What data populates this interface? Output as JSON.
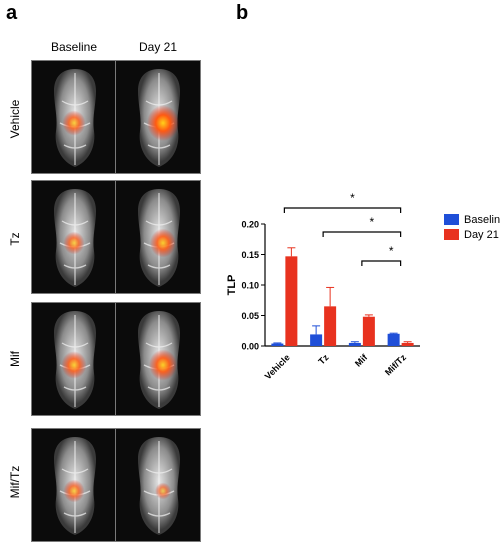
{
  "panel_a": {
    "letter": "a",
    "columns": [
      "Baseline",
      "Day 21"
    ],
    "rows": [
      "Vehicle",
      "Tz",
      "Mif",
      "Mif/Tz"
    ],
    "scans": [
      [
        {
          "signal": 0.55
        },
        {
          "signal": 1.0
        }
      ],
      [
        {
          "signal": 0.45
        },
        {
          "signal": 0.7
        }
      ],
      [
        {
          "signal": 0.65
        },
        {
          "signal": 0.8
        }
      ],
      [
        {
          "signal": 0.45
        },
        {
          "signal": 0.2
        }
      ]
    ]
  },
  "panel_b": {
    "letter": "b"
  },
  "chart_data": {
    "type": "bar",
    "categories": [
      "Vehicle",
      "Tz",
      "Mif",
      "Mif/Tz"
    ],
    "series": [
      {
        "name": "Baseline",
        "color": "#1f4fd8",
        "values": [
          0.004,
          0.019,
          0.005,
          0.02
        ],
        "errors": [
          0.001,
          0.014,
          0.002,
          0.001
        ]
      },
      {
        "name": "Day 21",
        "color": "#e8321f",
        "values": [
          0.147,
          0.065,
          0.048,
          0.005
        ],
        "errors": [
          0.014,
          0.031,
          0.003,
          0.002
        ]
      }
    ],
    "ylabel": "TLP",
    "xlabel": "",
    "ylim": [
      0,
      0.2
    ],
    "yticks": [
      "0.00",
      "0.05",
      "0.10",
      "0.15",
      "0.20"
    ],
    "significance": [
      {
        "from": "Vehicle",
        "to": "Mif/Tz",
        "label": "*"
      },
      {
        "from": "Tz",
        "to": "Mif/Tz",
        "label": "*"
      },
      {
        "from": "Mif",
        "to": "Mif/Tz",
        "label": "*"
      }
    ],
    "legend_position": "top-right"
  }
}
